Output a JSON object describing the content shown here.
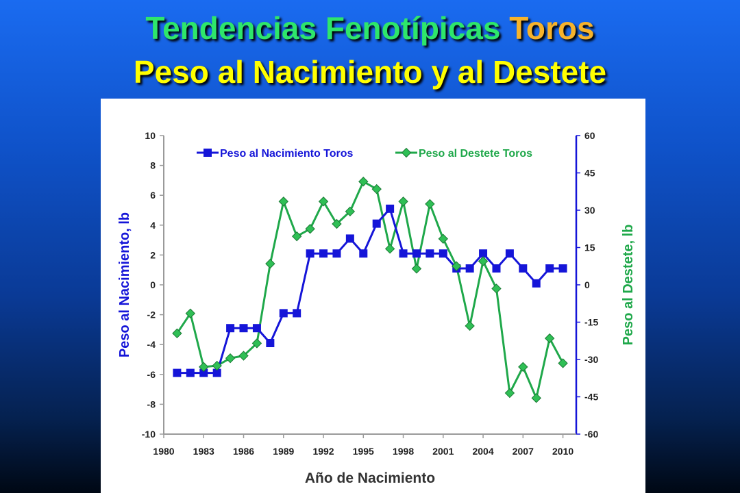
{
  "title": {
    "line1_part1": "Tendencias Fenotípicas",
    "line1_part2": "Toros",
    "line2": "Peso al Nacimiento y al Destete"
  },
  "colors": {
    "birth": "#1515d8",
    "wean": "#1fa84a",
    "wean_marker": "#2fbf55"
  },
  "chart_data": {
    "type": "line",
    "x_label": "Año de Nacimiento",
    "y_left_label": "Peso al Nacimiento, lb",
    "y_right_label": "Peso al Destete, lb",
    "x_range": [
      1980,
      2011
    ],
    "x_ticks": [
      1980,
      1983,
      1986,
      1989,
      1992,
      1995,
      1998,
      2001,
      2004,
      2007,
      2010
    ],
    "y_left_range": [
      -10,
      10
    ],
    "y_left_ticks": [
      -10,
      -8,
      -6,
      -4,
      -2,
      0,
      2,
      4,
      6,
      8,
      10
    ],
    "y_right_range": [
      -60,
      60
    ],
    "y_right_ticks": [
      -60,
      -45,
      -30,
      -15,
      0,
      15,
      30,
      45,
      60
    ],
    "legend_position": "top",
    "grid": false,
    "series": [
      {
        "name": "Peso al Nacimiento Toros",
        "axis": "left",
        "marker": "square",
        "x": [
          1981,
          1982,
          1983,
          1984,
          1985,
          1986,
          1987,
          1988,
          1989,
          1990,
          1991,
          1992,
          1993,
          1994,
          1995,
          1996,
          1997,
          1998,
          1999,
          2000,
          2001,
          2002,
          2003,
          2004,
          2005,
          2006,
          2007,
          2008,
          2009,
          2010
        ],
        "y": [
          -5.9,
          -5.9,
          -5.9,
          -5.9,
          -2.9,
          -2.9,
          -2.9,
          -3.9,
          -1.9,
          -1.9,
          2.1,
          2.1,
          2.1,
          3.1,
          2.1,
          4.1,
          5.1,
          2.1,
          2.1,
          2.1,
          2.1,
          1.1,
          1.1,
          2.1,
          1.1,
          2.1,
          1.1,
          0.1,
          1.1,
          1.1
        ]
      },
      {
        "name": "Peso al Destete Toros",
        "axis": "right",
        "marker": "diamond",
        "x": [
          1981,
          1982,
          1983,
          1984,
          1985,
          1986,
          1987,
          1988,
          1989,
          1990,
          1991,
          1992,
          1993,
          1994,
          1995,
          1996,
          1997,
          1998,
          1999,
          2000,
          2001,
          2002,
          2003,
          2004,
          2005,
          2006,
          2007,
          2008,
          2009,
          2010
        ],
        "y": [
          -19.5,
          -11.5,
          -33,
          -32.5,
          -29.5,
          -28.5,
          -23.5,
          8.5,
          33.5,
          19.5,
          22.5,
          33.5,
          24.5,
          29.5,
          41.5,
          38.5,
          14.5,
          33.5,
          6.5,
          32.5,
          18.5,
          7.5,
          -16.5,
          9.5,
          -1.5,
          -43.5,
          -33,
          -45.5,
          -21.5,
          -31.5
        ]
      }
    ]
  }
}
